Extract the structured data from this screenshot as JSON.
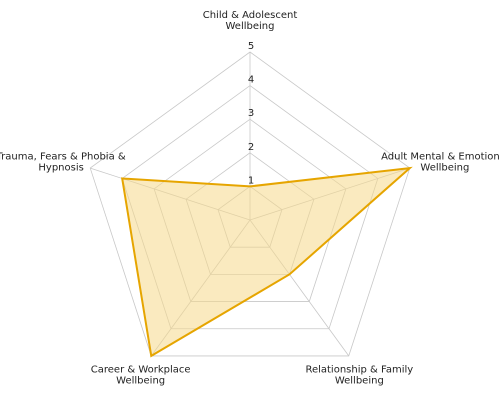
{
  "chart_data": {
    "type": "radar",
    "categories": [
      [
        "Child & Adolescent",
        "Wellbeing"
      ],
      [
        "Adult Mental & Emotional",
        "Wellbeing"
      ],
      [
        "Relationship & Family",
        "Wellbeing"
      ],
      [
        "Career & Workplace",
        "Wellbeing"
      ],
      [
        "Trauma, Fears & Phobia &",
        "Hypnosis"
      ]
    ],
    "values": [
      1,
      5,
      2,
      5,
      4
    ],
    "ticks": [
      "1",
      "2",
      "3",
      "4",
      "5"
    ],
    "rlim": [
      0,
      5
    ],
    "grid": true,
    "colors": {
      "line": "#e6a500",
      "fill": "#f5d98a",
      "grid": "#c8c8c8"
    }
  }
}
